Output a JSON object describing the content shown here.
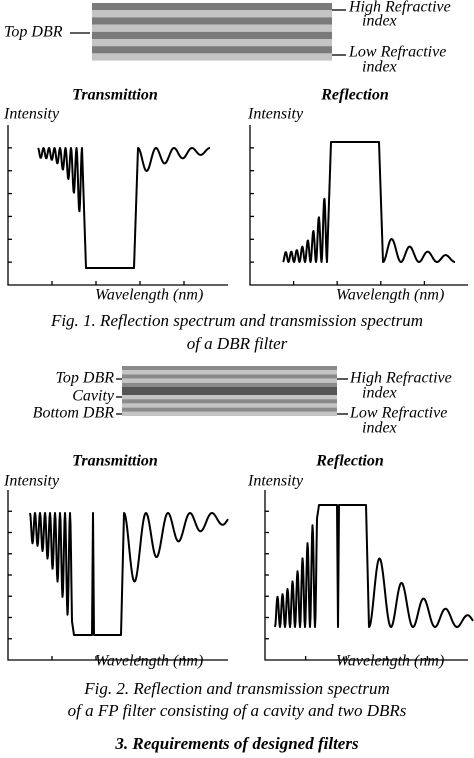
{
  "figure1": {
    "stack": {
      "top_label": "Top DBR",
      "high_label": [
        "High Refractive",
        "index"
      ],
      "low_label": [
        "Low Refractive",
        "index"
      ]
    },
    "panels": [
      {
        "title": "Transmittion",
        "y_label": "Intensity",
        "x_label": "Wavelength (nm)"
      },
      {
        "title": "Reflection",
        "y_label": "Intensity",
        "x_label": "Wavelength (nm)"
      }
    ],
    "caption": [
      "Fig. 1. Reflection spectrum and transmission spectrum",
      "of a DBR filter"
    ]
  },
  "figure2": {
    "stack": {
      "labels": [
        "Top DBR",
        "Cavity",
        "Bottom DBR"
      ],
      "high_label": [
        "High Refractive",
        "index"
      ],
      "low_label": [
        "Low Refractive",
        "index"
      ]
    },
    "panels": [
      {
        "title": "Transmittion",
        "y_label": "Intensity",
        "x_label": "Wavelength (nm)"
      },
      {
        "title": "Reflection",
        "y_label": "Intensity",
        "x_label": "Wavelength (nm)"
      }
    ],
    "caption": [
      "Fig. 2. Reflection and transmission spectrum",
      "of a FP filter consisting of a cavity and two DBRs"
    ]
  },
  "section_heading": "3. Requirements of designed filters"
}
